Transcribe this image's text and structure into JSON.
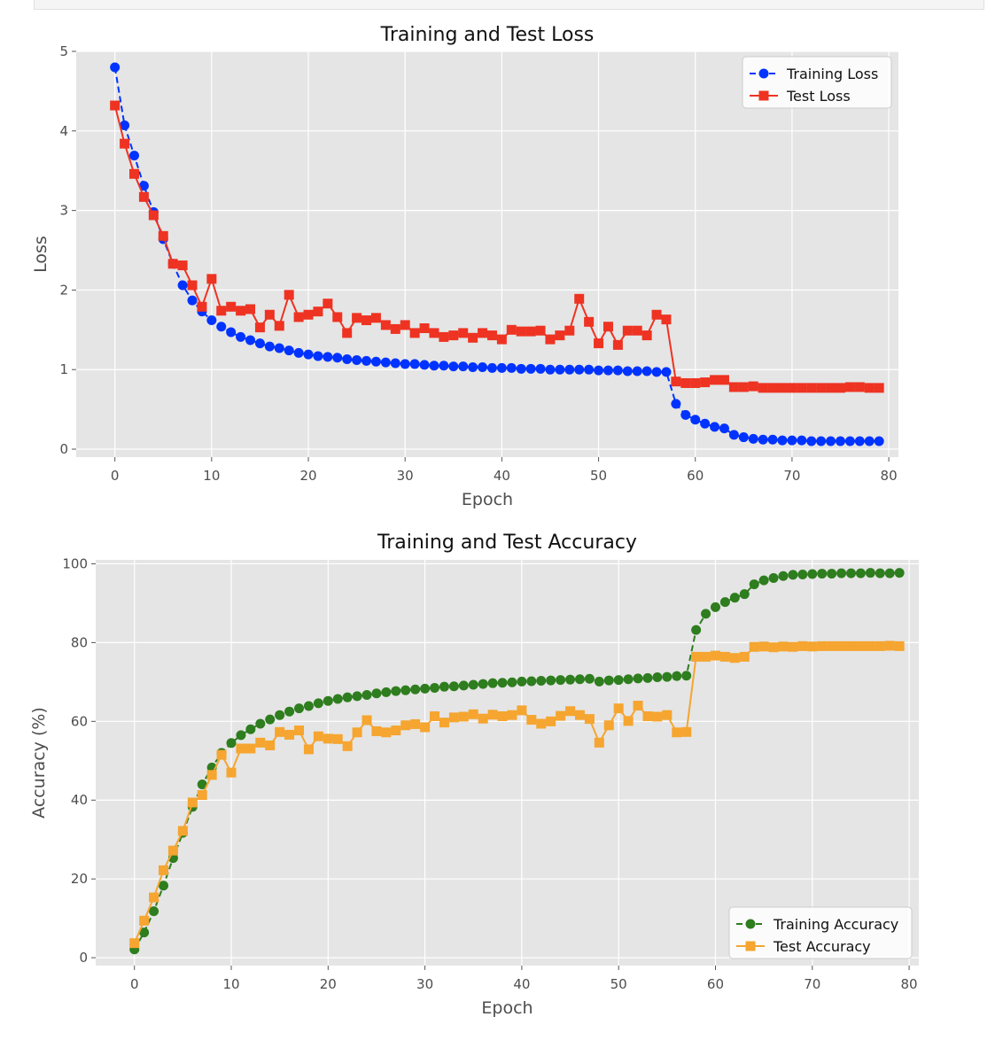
{
  "chart_data": [
    {
      "type": "line",
      "title": "Training and Test Loss",
      "xlabel": "Epoch",
      "ylabel": "Loss",
      "xlim": [
        -4,
        81
      ],
      "ylim": [
        -0.1,
        5.0
      ],
      "xticks": [
        0,
        10,
        20,
        30,
        40,
        50,
        60,
        70,
        80
      ],
      "yticks": [
        0,
        1,
        2,
        3,
        4,
        5
      ],
      "grid": true,
      "legend": "top-right",
      "x": [
        0,
        1,
        2,
        3,
        4,
        5,
        6,
        7,
        8,
        9,
        10,
        11,
        12,
        13,
        14,
        15,
        16,
        17,
        18,
        19,
        20,
        21,
        22,
        23,
        24,
        25,
        26,
        27,
        28,
        29,
        30,
        31,
        32,
        33,
        34,
        35,
        36,
        37,
        38,
        39,
        40,
        41,
        42,
        43,
        44,
        45,
        46,
        47,
        48,
        49,
        50,
        51,
        52,
        53,
        54,
        55,
        56,
        57,
        58,
        59,
        60,
        61,
        62,
        63,
        64,
        65,
        66,
        67,
        68,
        69,
        70,
        71,
        72,
        73,
        74,
        75,
        76,
        77,
        78,
        79
      ],
      "series": [
        {
          "name": "Training Loss",
          "color": "#0033ff",
          "line": "dashed",
          "marker": "circle",
          "values": [
            4.8,
            4.07,
            3.69,
            3.31,
            2.98,
            2.64,
            2.33,
            2.06,
            1.87,
            1.73,
            1.62,
            1.54,
            1.47,
            1.41,
            1.37,
            1.33,
            1.29,
            1.27,
            1.24,
            1.21,
            1.19,
            1.17,
            1.16,
            1.15,
            1.13,
            1.12,
            1.11,
            1.1,
            1.09,
            1.08,
            1.07,
            1.07,
            1.06,
            1.05,
            1.05,
            1.04,
            1.04,
            1.03,
            1.03,
            1.02,
            1.02,
            1.02,
            1.01,
            1.01,
            1.01,
            1.0,
            1.0,
            1.0,
            1.0,
            1.0,
            0.99,
            0.99,
            0.99,
            0.98,
            0.98,
            0.98,
            0.97,
            0.97,
            0.57,
            0.43,
            0.37,
            0.32,
            0.28,
            0.26,
            0.18,
            0.15,
            0.13,
            0.12,
            0.12,
            0.11,
            0.11,
            0.11,
            0.1,
            0.1,
            0.1,
            0.1,
            0.1,
            0.1,
            0.1,
            0.1
          ]
        },
        {
          "name": "Test Loss",
          "color": "#ee3322",
          "line": "solid",
          "marker": "square",
          "values": [
            4.32,
            3.84,
            3.46,
            3.17,
            2.94,
            2.68,
            2.33,
            2.31,
            2.06,
            1.79,
            2.14,
            1.74,
            1.79,
            1.74,
            1.76,
            1.53,
            1.69,
            1.55,
            1.94,
            1.66,
            1.69,
            1.73,
            1.83,
            1.66,
            1.46,
            1.65,
            1.62,
            1.65,
            1.56,
            1.51,
            1.56,
            1.46,
            1.52,
            1.46,
            1.41,
            1.43,
            1.46,
            1.4,
            1.46,
            1.43,
            1.38,
            1.5,
            1.48,
            1.48,
            1.49,
            1.38,
            1.43,
            1.49,
            1.89,
            1.6,
            1.33,
            1.54,
            1.31,
            1.49,
            1.49,
            1.43,
            1.69,
            1.63,
            0.85,
            0.83,
            0.83,
            0.84,
            0.87,
            0.87,
            0.78,
            0.78,
            0.79,
            0.77,
            0.77,
            0.77,
            0.77,
            0.77,
            0.77,
            0.77,
            0.77,
            0.77,
            0.78,
            0.78,
            0.77,
            0.77
          ]
        }
      ]
    },
    {
      "type": "line",
      "title": "Training and Test Accuracy",
      "xlabel": "Epoch",
      "ylabel": "Accuracy (%)",
      "xlim": [
        -4,
        81
      ],
      "ylim": [
        -2,
        101
      ],
      "xticks": [
        0,
        10,
        20,
        30,
        40,
        50,
        60,
        70,
        80
      ],
      "yticks": [
        0,
        20,
        40,
        60,
        80,
        100
      ],
      "grid": true,
      "legend": "bottom-right",
      "x": [
        0,
        1,
        2,
        3,
        4,
        5,
        6,
        7,
        8,
        9,
        10,
        11,
        12,
        13,
        14,
        15,
        16,
        17,
        18,
        19,
        20,
        21,
        22,
        23,
        24,
        25,
        26,
        27,
        28,
        29,
        30,
        31,
        32,
        33,
        34,
        35,
        36,
        37,
        38,
        39,
        40,
        41,
        42,
        43,
        44,
        45,
        46,
        47,
        48,
        49,
        50,
        51,
        52,
        53,
        54,
        55,
        56,
        57,
        58,
        59,
        60,
        61,
        62,
        63,
        64,
        65,
        66,
        67,
        68,
        69,
        70,
        71,
        72,
        73,
        74,
        75,
        76,
        77,
        78,
        79
      ],
      "series": [
        {
          "name": "Training Accuracy",
          "color": "#2e7d1e",
          "line": "dashed",
          "marker": "circle",
          "values": [
            2.1,
            6.4,
            11.8,
            18.3,
            25.3,
            31.7,
            38.3,
            44.0,
            48.3,
            52.0,
            54.5,
            56.5,
            58.0,
            59.4,
            60.5,
            61.6,
            62.5,
            63.3,
            63.9,
            64.6,
            65.2,
            65.7,
            66.1,
            66.4,
            66.7,
            67.1,
            67.4,
            67.7,
            67.9,
            68.1,
            68.3,
            68.5,
            68.8,
            68.9,
            69.1,
            69.3,
            69.5,
            69.7,
            69.8,
            69.9,
            70.1,
            70.2,
            70.3,
            70.4,
            70.5,
            70.6,
            70.7,
            70.8,
            70.1,
            70.4,
            70.5,
            70.7,
            70.9,
            71.0,
            71.2,
            71.3,
            71.5,
            71.6,
            83.2,
            87.3,
            89.0,
            90.3,
            91.4,
            92.3,
            94.8,
            95.8,
            96.4,
            96.9,
            97.2,
            97.3,
            97.4,
            97.5,
            97.5,
            97.6,
            97.6,
            97.6,
            97.7,
            97.6,
            97.6,
            97.7
          ]
        },
        {
          "name": "Test Accuracy",
          "color": "#f5a530",
          "line": "solid",
          "marker": "square",
          "values": [
            3.7,
            9.4,
            15.3,
            22.2,
            27.2,
            32.2,
            39.4,
            41.3,
            46.4,
            51.5,
            47.0,
            53.1,
            53.1,
            54.6,
            53.9,
            57.3,
            56.6,
            57.7,
            52.9,
            56.2,
            55.6,
            55.5,
            53.7,
            57.2,
            60.3,
            57.5,
            57.2,
            57.7,
            59.0,
            59.3,
            58.5,
            61.3,
            59.7,
            61.0,
            61.2,
            61.8,
            60.7,
            61.7,
            61.3,
            61.6,
            62.8,
            60.4,
            59.4,
            60.0,
            61.4,
            62.6,
            61.6,
            60.6,
            54.6,
            59.0,
            63.3,
            60.1,
            64.0,
            61.3,
            61.2,
            61.6,
            57.2,
            57.3,
            76.4,
            76.4,
            76.7,
            76.4,
            76.1,
            76.4,
            78.9,
            79.0,
            78.8,
            79.0,
            78.9,
            79.1,
            79.0,
            79.1,
            79.1,
            79.1,
            79.1,
            79.1,
            79.1,
            79.1,
            79.2,
            79.1
          ]
        }
      ]
    }
  ]
}
